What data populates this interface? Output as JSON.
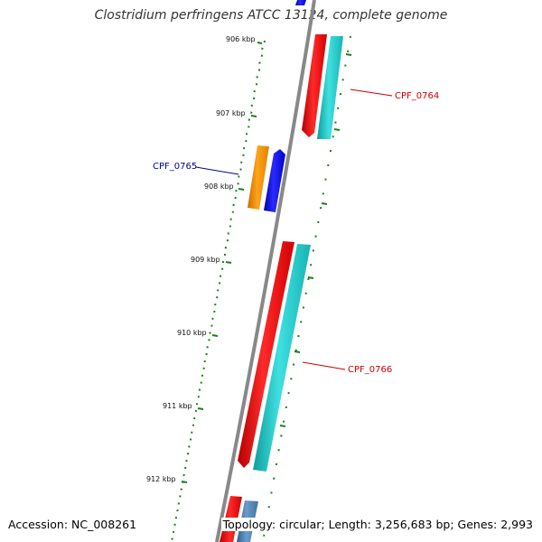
{
  "title": "Clostridium perfringens ATCC 13124, complete genome",
  "accession": "Accession: NC_008261",
  "summary": "Topology: circular; Length: 3,256,683 bp; Genes: 2,993",
  "ruler": {
    "ticks": [
      "906 kbp",
      "907 kbp",
      "908 kbp",
      "909 kbp",
      "910 kbp",
      "911 kbp",
      "912 kbp"
    ]
  },
  "genes": [
    {
      "label": "CPF_0764",
      "color": "#cc0000"
    },
    {
      "label": "CPF_0765",
      "color": "#000099"
    },
    {
      "label": "CPF_0766",
      "color": "#cc0000"
    }
  ],
  "colors": {
    "backbone": "#888888",
    "ruler_dots": "#1a7f1a",
    "cds_forward": "#ff0000",
    "rna_cyan": "#20cccc",
    "cds_blue": "#0000ee",
    "orange": "#ff9900",
    "steel_blue": "#4682b4"
  }
}
